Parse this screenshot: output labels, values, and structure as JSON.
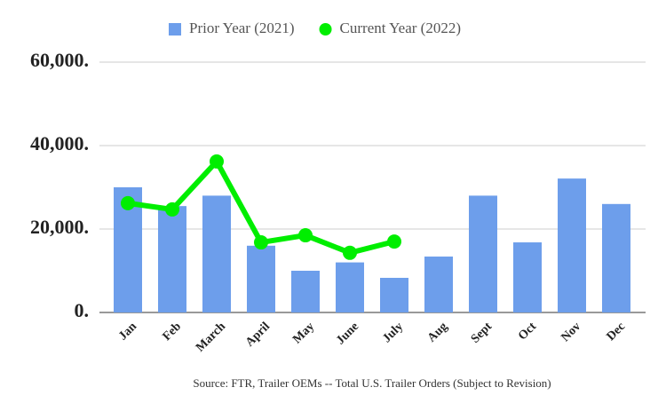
{
  "chart_data": {
    "type": "bar",
    "categories": [
      "Jan",
      "Feb",
      "March",
      "April",
      "May",
      "June",
      "July",
      "Aug",
      "Sept",
      "Oct",
      "Nov",
      "Dec"
    ],
    "series": [
      {
        "name": "Prior Year (2021)",
        "color": "#6d9eeb",
        "type": "bar",
        "values": [
          30000,
          25500,
          28000,
          16000,
          10000,
          12000,
          8300,
          13400,
          28000,
          16800,
          32100,
          26000
        ]
      },
      {
        "name": "Current Year (2022)",
        "color": "#00ee00",
        "type": "line",
        "values": [
          26200,
          24700,
          36200,
          16800,
          18500,
          14300,
          17000,
          null,
          null,
          null,
          null,
          null
        ]
      }
    ],
    "ylim": [
      0,
      60000
    ],
    "yticks": [
      {
        "value": 0,
        "label": "0."
      },
      {
        "value": 20000,
        "label": "20,000."
      },
      {
        "value": 40000,
        "label": "40,000."
      },
      {
        "value": 60000,
        "label": "60,000."
      }
    ],
    "grid": true,
    "legend": "top",
    "source": "Source: FTR, Trailer OEMs -- Total U.S. Trailer Orders (Subject to Revision)"
  }
}
